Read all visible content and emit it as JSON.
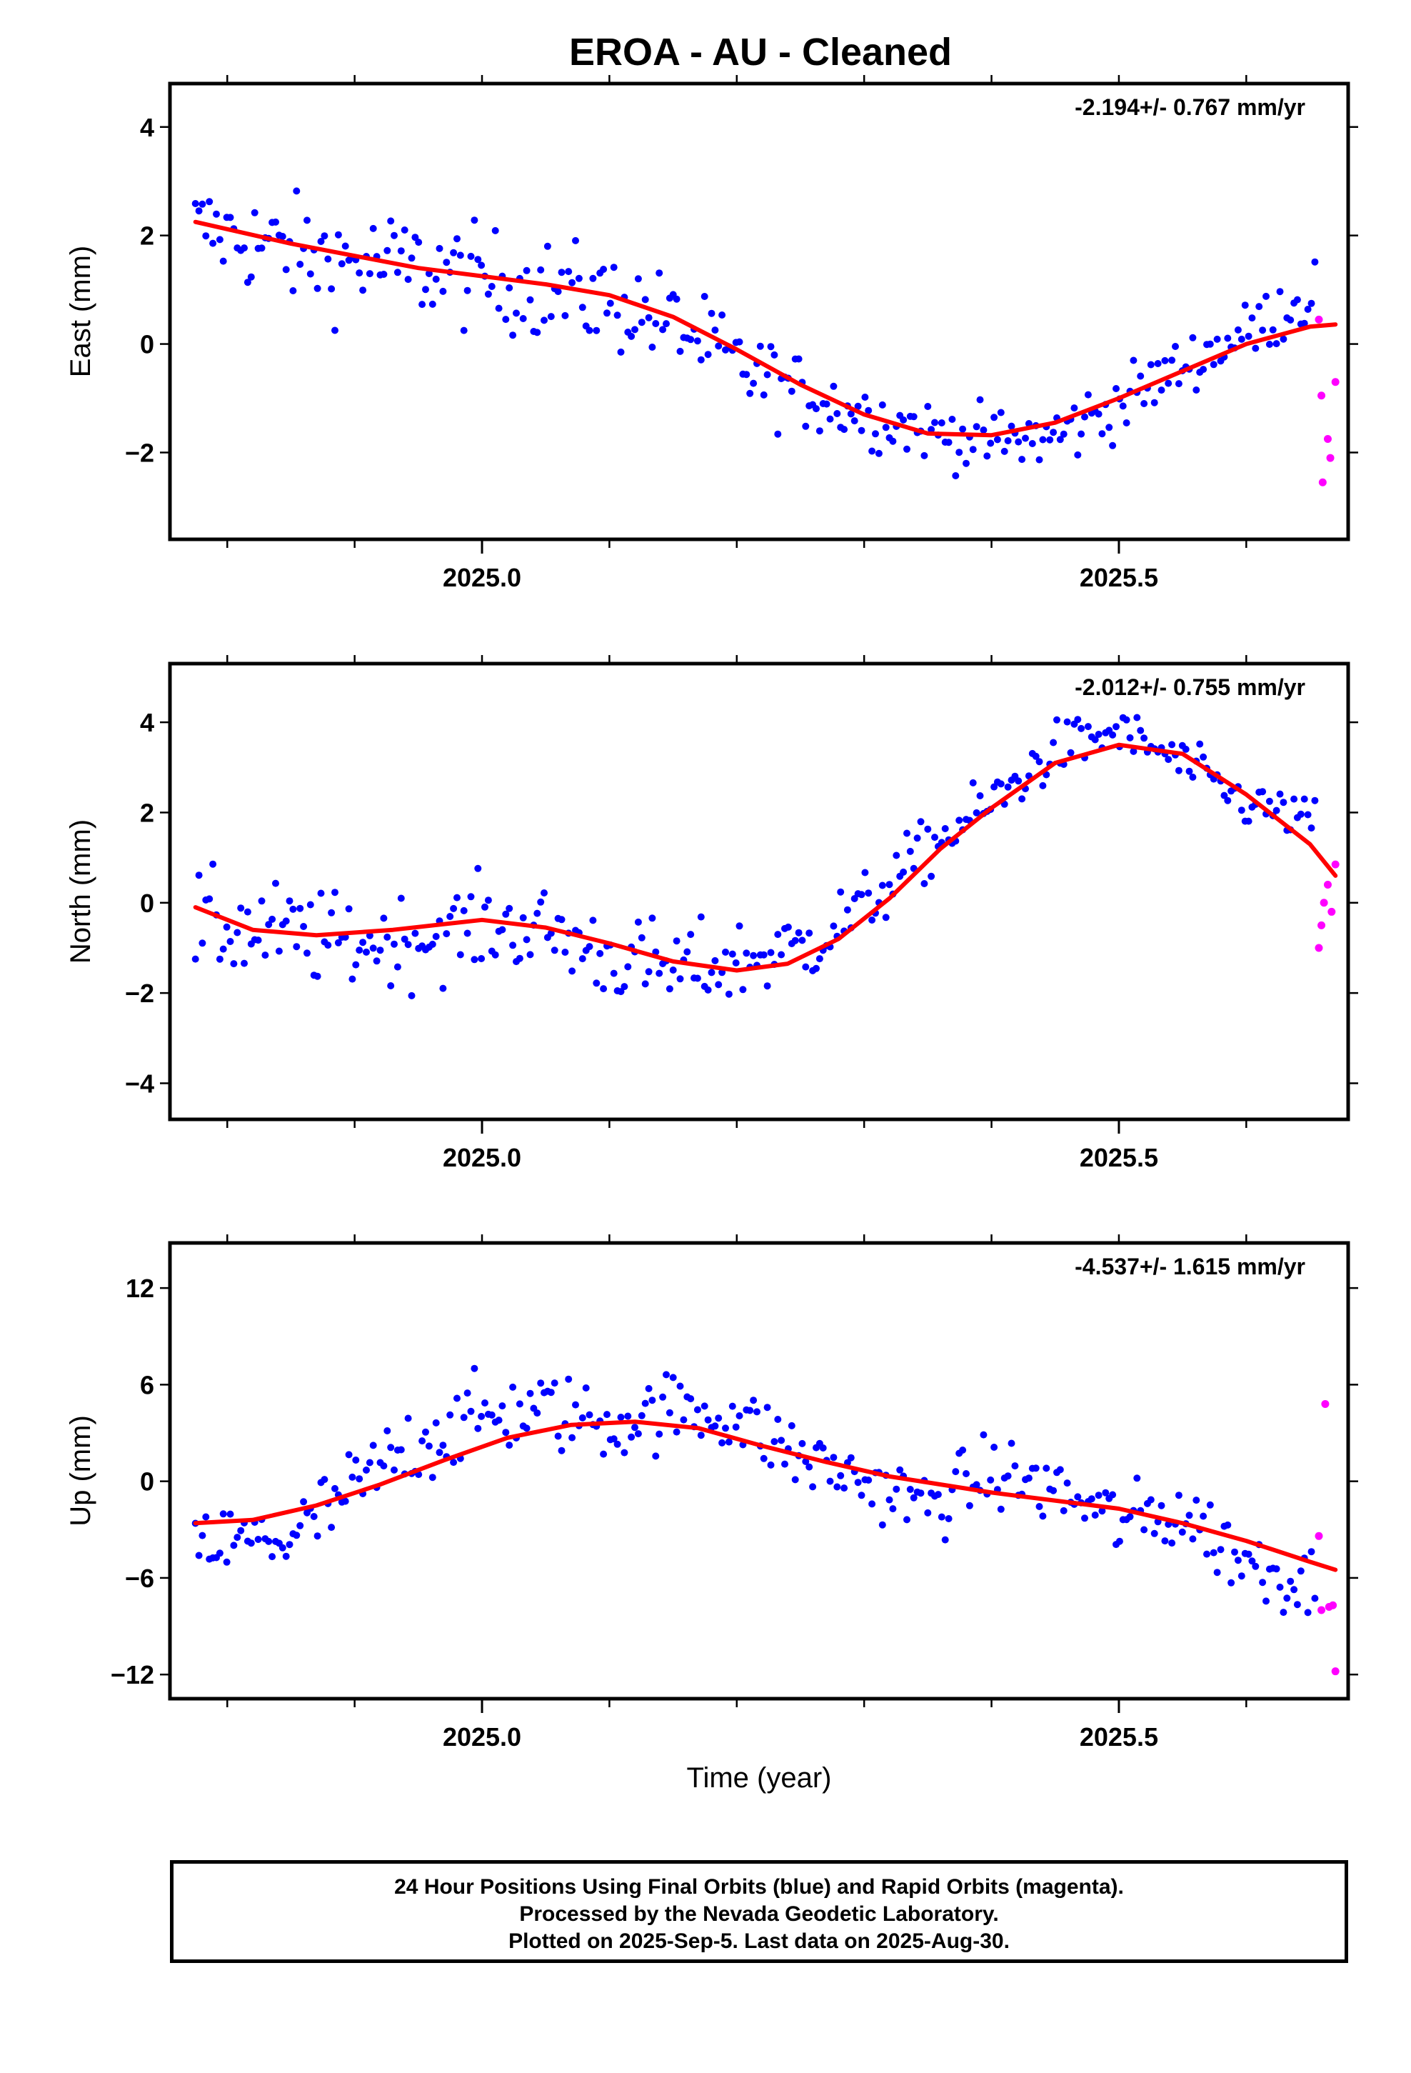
{
  "title": "EROA  - AU - Cleaned",
  "xlabel": "Time (year)",
  "footer": {
    "line1": "24 Hour Positions Using Final Orbits (blue) and Rapid Orbits (magenta).",
    "line2": "Processed by the Nevada Geodetic Laboratory.",
    "line3": "Plotted on 2025-Sep-5. Last data on 2025-Aug-30."
  },
  "colors": {
    "final": "#0000ff",
    "rapid": "#ff00ff",
    "fit": "#ff0000"
  },
  "chart_data": [
    {
      "type": "scatter",
      "ylabel": "East (mm)",
      "rate_text": "-2.194+/- 0.767 mm/yr",
      "xlim": [
        2024.755,
        2025.68
      ],
      "ylim": [
        -3.6,
        4.8
      ],
      "xticks": [
        2025.0,
        2025.5
      ],
      "yticks": [
        -2,
        0,
        2,
        4
      ],
      "fit": [
        [
          2024.775,
          2.25
        ],
        [
          2024.85,
          1.85
        ],
        [
          2024.95,
          1.4
        ],
        [
          2025.05,
          1.1
        ],
        [
          2025.1,
          0.9
        ],
        [
          2025.15,
          0.5
        ],
        [
          2025.2,
          -0.1
        ],
        [
          2025.25,
          -0.75
        ],
        [
          2025.3,
          -1.3
        ],
        [
          2025.35,
          -1.65
        ],
        [
          2025.4,
          -1.68
        ],
        [
          2025.45,
          -1.45
        ],
        [
          2025.5,
          -1.0
        ],
        [
          2025.55,
          -0.5
        ],
        [
          2025.6,
          0.0
        ],
        [
          2025.65,
          0.32
        ],
        [
          2025.67,
          0.36
        ]
      ],
      "rapid": [
        [
          2025.657,
          0.45
        ],
        [
          2025.659,
          -0.95
        ],
        [
          2025.66,
          -2.55
        ],
        [
          2025.664,
          -1.75
        ],
        [
          2025.666,
          -2.1
        ],
        [
          2025.67,
          -0.7
        ]
      ],
      "final_anchors": [
        [
          2024.775,
          2.2,
          1.0
        ],
        [
          2024.8,
          2.0,
          1.2
        ],
        [
          2024.85,
          1.7,
          1.3
        ],
        [
          2024.9,
          1.5,
          1.3
        ],
        [
          2024.95,
          1.4,
          1.3
        ],
        [
          2025.0,
          1.2,
          1.2
        ],
        [
          2025.05,
          1.0,
          1.2
        ],
        [
          2025.1,
          0.8,
          1.2
        ],
        [
          2025.15,
          0.4,
          1.1
        ],
        [
          2025.2,
          -0.4,
          1.1
        ],
        [
          2025.25,
          -0.9,
          0.9
        ],
        [
          2025.3,
          -1.3,
          0.8
        ],
        [
          2025.35,
          -1.6,
          0.7
        ],
        [
          2025.4,
          -1.8,
          0.8
        ],
        [
          2025.45,
          -1.7,
          0.9
        ],
        [
          2025.5,
          -1.1,
          0.8
        ],
        [
          2025.55,
          -0.4,
          0.7
        ],
        [
          2025.6,
          0.2,
          0.7
        ],
        [
          2025.655,
          1.0,
          0.9
        ]
      ]
    },
    {
      "type": "scatter",
      "ylabel": "North (mm)",
      "rate_text": "-2.012+/- 0.755 mm/yr",
      "xlim": [
        2024.755,
        2025.68
      ],
      "ylim": [
        -4.8,
        5.3
      ],
      "xticks": [
        2025.0,
        2025.5
      ],
      "yticks": [
        -4,
        -2,
        0,
        2,
        4
      ],
      "fit": [
        [
          2024.775,
          -0.1
        ],
        [
          2024.82,
          -0.6
        ],
        [
          2024.87,
          -0.72
        ],
        [
          2024.93,
          -0.6
        ],
        [
          2025.0,
          -0.38
        ],
        [
          2025.05,
          -0.55
        ],
        [
          2025.1,
          -0.9
        ],
        [
          2025.15,
          -1.3
        ],
        [
          2025.2,
          -1.5
        ],
        [
          2025.24,
          -1.35
        ],
        [
          2025.28,
          -0.8
        ],
        [
          2025.32,
          0.1
        ],
        [
          2025.36,
          1.2
        ],
        [
          2025.4,
          2.1
        ],
        [
          2025.45,
          3.1
        ],
        [
          2025.5,
          3.5
        ],
        [
          2025.55,
          3.3
        ],
        [
          2025.6,
          2.4
        ],
        [
          2025.65,
          1.3
        ],
        [
          2025.67,
          0.6
        ]
      ],
      "rapid": [
        [
          2025.657,
          -1.0
        ],
        [
          2025.659,
          -0.5
        ],
        [
          2025.661,
          0.0
        ],
        [
          2025.664,
          0.4
        ],
        [
          2025.667,
          -0.2
        ],
        [
          2025.67,
          0.85
        ]
      ],
      "final_anchors": [
        [
          2024.775,
          -0.5,
          1.5
        ],
        [
          2024.85,
          -0.7,
          1.4
        ],
        [
          2024.9,
          -0.9,
          1.3
        ],
        [
          2024.95,
          -0.8,
          1.3
        ],
        [
          2025.0,
          -0.5,
          1.3
        ],
        [
          2025.05,
          -0.6,
          1.2
        ],
        [
          2025.1,
          -1.2,
          1.3
        ],
        [
          2025.15,
          -1.5,
          1.3
        ],
        [
          2025.2,
          -1.3,
          1.2
        ],
        [
          2025.25,
          -1.0,
          1.2
        ],
        [
          2025.3,
          -0.1,
          1.0
        ],
        [
          2025.35,
          1.2,
          0.9
        ],
        [
          2025.4,
          2.2,
          0.9
        ],
        [
          2025.45,
          3.4,
          0.8
        ],
        [
          2025.5,
          3.8,
          0.7
        ],
        [
          2025.55,
          3.1,
          0.7
        ],
        [
          2025.6,
          2.2,
          0.7
        ],
        [
          2025.655,
          1.8,
          0.6
        ]
      ]
    },
    {
      "type": "scatter",
      "ylabel": "Up (mm)",
      "rate_text": "-4.537+/- 1.615 mm/yr",
      "xlim": [
        2024.755,
        2025.68
      ],
      "ylim": [
        -13.5,
        14.8
      ],
      "xticks": [
        2025.0,
        2025.5
      ],
      "yticks": [
        -12,
        -6,
        0,
        6,
        12
      ],
      "fit": [
        [
          2024.775,
          -2.6
        ],
        [
          2024.82,
          -2.4
        ],
        [
          2024.87,
          -1.5
        ],
        [
          2024.92,
          -0.2
        ],
        [
          2024.97,
          1.3
        ],
        [
          2025.02,
          2.7
        ],
        [
          2025.07,
          3.5
        ],
        [
          2025.12,
          3.7
        ],
        [
          2025.17,
          3.3
        ],
        [
          2025.22,
          2.2
        ],
        [
          2025.27,
          1.2
        ],
        [
          2025.32,
          0.3
        ],
        [
          2025.4,
          -0.7
        ],
        [
          2025.5,
          -1.7
        ],
        [
          2025.55,
          -2.6
        ],
        [
          2025.6,
          -3.7
        ],
        [
          2025.65,
          -5.0
        ],
        [
          2025.67,
          -5.5
        ]
      ],
      "rapid": [
        [
          2025.657,
          -3.4
        ],
        [
          2025.659,
          -8.0
        ],
        [
          2025.662,
          4.8
        ],
        [
          2025.665,
          -7.8
        ],
        [
          2025.668,
          -7.7
        ],
        [
          2025.67,
          -11.8
        ]
      ],
      "final_anchors": [
        [
          2024.775,
          -4.0,
          3.0
        ],
        [
          2024.85,
          -3.5,
          3.2
        ],
        [
          2024.9,
          -0.5,
          3.5
        ],
        [
          2024.95,
          2.5,
          3.5
        ],
        [
          2025.0,
          4.0,
          3.3
        ],
        [
          2025.05,
          4.5,
          3.3
        ],
        [
          2025.1,
          3.5,
          3.0
        ],
        [
          2025.15,
          4.5,
          3.0
        ],
        [
          2025.2,
          4.0,
          3.0
        ],
        [
          2025.25,
          1.5,
          3.0
        ],
        [
          2025.3,
          0.0,
          2.8
        ],
        [
          2025.35,
          -1.5,
          3.0
        ],
        [
          2025.4,
          0.5,
          3.0
        ],
        [
          2025.45,
          -0.5,
          3.0
        ],
        [
          2025.5,
          -2.5,
          3.0
        ],
        [
          2025.55,
          -2.0,
          3.0
        ],
        [
          2025.6,
          -5.0,
          3.2
        ],
        [
          2025.655,
          -6.5,
          3.0
        ]
      ]
    }
  ]
}
